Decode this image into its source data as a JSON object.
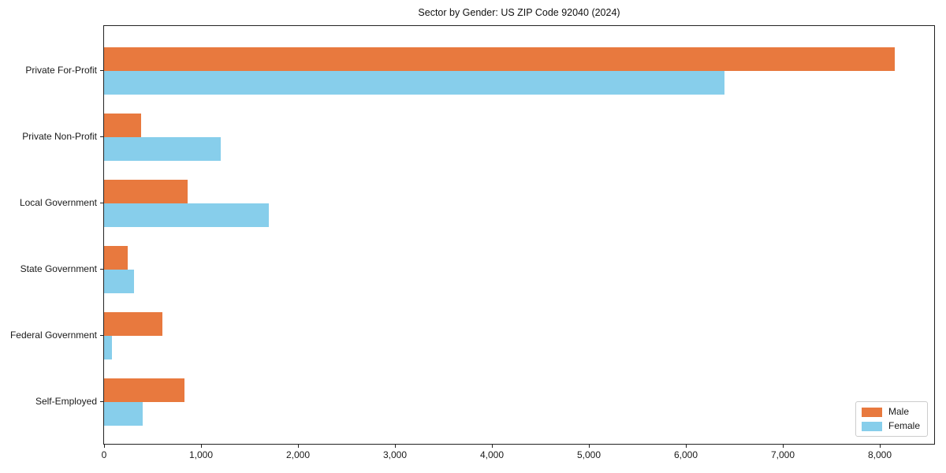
{
  "chart_data": {
    "type": "bar",
    "orientation": "horizontal",
    "title": "Sector by Gender: US ZIP Code 92040 (2024)",
    "categories": [
      "Private For-Profit",
      "Private Non-Profit",
      "Local Government",
      "State Government",
      "Federal Government",
      "Self-Employed"
    ],
    "series": [
      {
        "name": "Male",
        "color": "#e8793e",
        "values": [
          8150,
          380,
          860,
          240,
          600,
          830
        ]
      },
      {
        "name": "Female",
        "color": "#87ceeb",
        "values": [
          6400,
          1200,
          1700,
          310,
          80,
          400
        ]
      }
    ],
    "xlim": [
      0,
      8560
    ],
    "xticks": [
      0,
      1000,
      2000,
      3000,
      4000,
      5000,
      6000,
      7000,
      8000
    ],
    "xtick_labels": [
      "0",
      "1,000",
      "2,000",
      "3,000",
      "4,000",
      "5,000",
      "6,000",
      "7,000",
      "8,000"
    ],
    "ylabel": "",
    "xlabel": "",
    "grid": false,
    "legend": {
      "position": "lower right",
      "entries": [
        "Male",
        "Female"
      ]
    }
  }
}
